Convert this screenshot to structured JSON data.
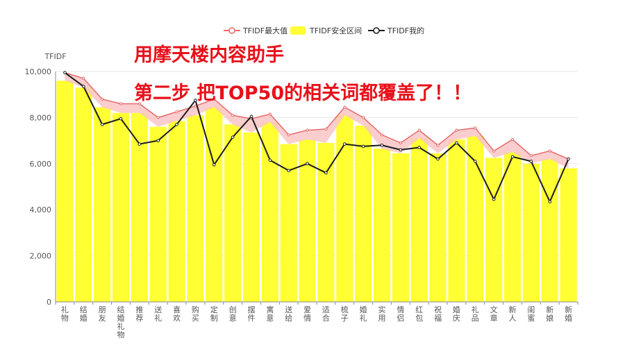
{
  "chart_data": {
    "type": "bar",
    "ylabel": "TFIDF",
    "ylim": [
      0,
      10000
    ],
    "yticks": [
      0,
      2000,
      4000,
      6000,
      8000,
      10000
    ],
    "ytick_labels": [
      "0",
      "2,000",
      "4,000",
      "6,000",
      "8,000",
      "10,000"
    ],
    "grid": true,
    "legend_position": "top",
    "categories": [
      "礼物",
      "结婚",
      "朋友",
      "结婚礼物",
      "推荐",
      "送礼",
      "喜欢",
      "购买",
      "定制",
      "创意",
      "摆件",
      "寓意",
      "送给",
      "爱情",
      "适合",
      "梳子",
      "婚礼",
      "实用",
      "情侣",
      "红包",
      "祝福",
      "婚庆",
      "礼品",
      "文章",
      "新人",
      "闺蜜",
      "新娘",
      "新婚"
    ],
    "category_label_lines": [
      [
        "礼",
        "物"
      ],
      [
        "结",
        "婚"
      ],
      [
        "朋",
        "友"
      ],
      [
        "结",
        "婚",
        "礼",
        "物"
      ],
      [
        "推",
        "荐"
      ],
      [
        "送",
        "礼"
      ],
      [
        "喜",
        "欢"
      ],
      [
        "购",
        "买"
      ],
      [
        "定",
        "制"
      ],
      [
        "创",
        "意"
      ],
      [
        "摆",
        "件"
      ],
      [
        "寓",
        "意"
      ],
      [
        "送",
        "给"
      ],
      [
        "爱",
        "情"
      ],
      [
        "适",
        "合"
      ],
      [
        "梳",
        "子"
      ],
      [
        "婚",
        "礼"
      ],
      [
        "实",
        "用"
      ],
      [
        "情",
        "侣"
      ],
      [
        "红",
        "包"
      ],
      [
        "祝",
        "福"
      ],
      [
        "婚",
        "庆"
      ],
      [
        "礼",
        "品"
      ],
      [
        "文",
        "章"
      ],
      [
        "新",
        "人"
      ],
      [
        "闺",
        "蜜"
      ],
      [
        "新",
        "娘"
      ],
      [
        "新",
        "婚"
      ]
    ],
    "series": [
      {
        "name": "TFIDF最大值",
        "type": "area-line",
        "color": "#e8696b",
        "fill": "#f9c6c6",
        "values": [
          9950,
          9700,
          8800,
          8600,
          8600,
          8000,
          8250,
          8500,
          8800,
          8100,
          7950,
          8150,
          7250,
          7450,
          7500,
          8450,
          8000,
          7250,
          6900,
          7450,
          6800,
          7450,
          7550,
          6550,
          7050,
          6350,
          6550,
          6200
        ]
      },
      {
        "name": "TFIDF安全区间",
        "type": "bar",
        "color": "#ffff33",
        "values": [
          9600,
          9300,
          8450,
          8200,
          8200,
          7600,
          7850,
          8100,
          8450,
          7700,
          7350,
          7800,
          6850,
          7050,
          6900,
          8100,
          7650,
          6650,
          6450,
          7100,
          6450,
          7050,
          7200,
          6250,
          6500,
          6000,
          6200,
          5800
        ]
      },
      {
        "name": "TFIDF我的",
        "type": "line",
        "color": "#1a1a1a",
        "values": [
          9950,
          9350,
          7700,
          7950,
          6850,
          7000,
          7700,
          8750,
          5950,
          7150,
          8050,
          6150,
          5700,
          6000,
          5600,
          6850,
          6750,
          6800,
          6600,
          6700,
          6200,
          6900,
          6100,
          4450,
          6300,
          6100,
          4350,
          6200
        ]
      }
    ]
  },
  "overlay": {
    "line1": "用摩天楼内容助手",
    "line2": "第二步 把TOP50的相关词都覆盖了！！"
  }
}
